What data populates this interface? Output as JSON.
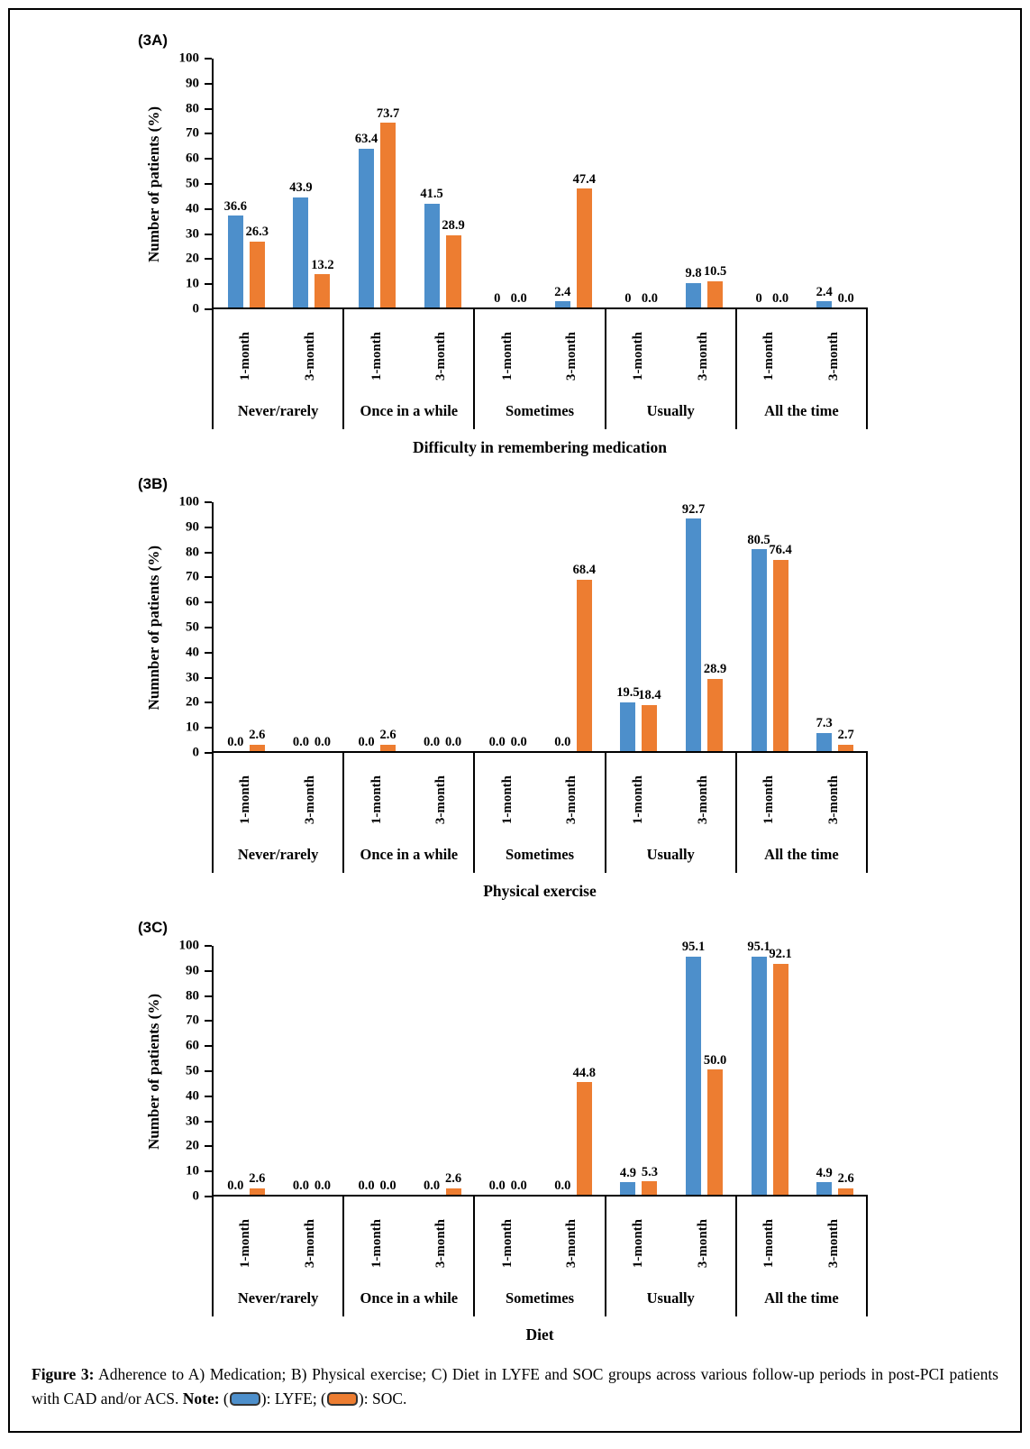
{
  "caption": {
    "label": "Figure 3:",
    "body": " Adherence to A) Medication; B) Physical exercise; C) Diet in LYFE and SOC groups across various follow-up periods in post-PCI patients with CAD and/or ACS. ",
    "note_label": "Note:",
    "note_open": " (",
    "lyfe_after": "): LYFE; (",
    "soc_after": "): SOC.",
    "lyfe_color": "#4D8FCB",
    "soc_color": "#ED7D31"
  },
  "chart_data": [
    {
      "id": "3A",
      "panel_label": "(3A)",
      "type": "bar",
      "title": "",
      "xlabel": "Difficulty in remembering medication",
      "ylabel": "Number of patients (%)",
      "ylim": [
        0,
        100
      ],
      "ytick_step": 10,
      "grid": false,
      "legend_position": "caption",
      "categories": [
        "Never/rarely",
        "Once in a while",
        "Sometimes",
        "Usually",
        "All the time"
      ],
      "periods": [
        "1-month",
        "3-month"
      ],
      "series": [
        {
          "name": "LYFE",
          "color": "#4D8FCB",
          "values": [
            [
              36.6,
              43.9
            ],
            [
              63.4,
              41.5
            ],
            [
              0,
              2.4
            ],
            [
              0,
              9.8
            ],
            [
              0,
              2.4
            ]
          ],
          "labels": [
            [
              "36.6",
              "43.9"
            ],
            [
              "63.4",
              "41.5"
            ],
            [
              "0",
              "2.4"
            ],
            [
              "0",
              "9.8"
            ],
            [
              "0",
              "2.4"
            ]
          ]
        },
        {
          "name": "SOC",
          "color": "#ED7D31",
          "values": [
            [
              26.3,
              13.2
            ],
            [
              73.7,
              28.9
            ],
            [
              0,
              47.4
            ],
            [
              0,
              10.5
            ],
            [
              0,
              0
            ]
          ],
          "labels": [
            [
              "26.3",
              "13.2"
            ],
            [
              "73.7",
              "28.9"
            ],
            [
              "0.0",
              "47.4"
            ],
            [
              "0.0",
              "10.5"
            ],
            [
              "0.0",
              "0.0"
            ]
          ]
        }
      ]
    },
    {
      "id": "3B",
      "panel_label": "(3B)",
      "type": "bar",
      "title": "",
      "xlabel": "Physical exercise",
      "ylabel": "Numnber of patients (%)",
      "ylim": [
        0,
        100
      ],
      "ytick_step": 10,
      "grid": false,
      "legend_position": "caption",
      "categories": [
        "Never/rarely",
        "Once in a while",
        "Sometimes",
        "Usually",
        "All the time"
      ],
      "periods": [
        "1-month",
        "3-month"
      ],
      "series": [
        {
          "name": "LYFE",
          "color": "#4D8FCB",
          "values": [
            [
              0,
              0
            ],
            [
              0,
              0
            ],
            [
              0,
              0
            ],
            [
              19.5,
              92.7
            ],
            [
              80.5,
              7.3
            ]
          ],
          "labels": [
            [
              "0.0",
              "0.0"
            ],
            [
              "0.0",
              "0.0"
            ],
            [
              "0.0",
              "0.0"
            ],
            [
              "19.5",
              "92.7"
            ],
            [
              "80.5",
              "7.3"
            ]
          ]
        },
        {
          "name": "SOC",
          "color": "#ED7D31",
          "values": [
            [
              2.6,
              0
            ],
            [
              2.6,
              0
            ],
            [
              0,
              68.4
            ],
            [
              18.4,
              28.9
            ],
            [
              76.4,
              2.7
            ]
          ],
          "labels": [
            [
              "2.6",
              "0.0"
            ],
            [
              "2.6",
              "0.0"
            ],
            [
              "0.0",
              "68.4"
            ],
            [
              "18.4",
              "28.9"
            ],
            [
              "76.4",
              "2.7"
            ]
          ]
        }
      ]
    },
    {
      "id": "3C",
      "panel_label": "(3C)",
      "type": "bar",
      "title": "",
      "xlabel": "Diet",
      "ylabel": "Number of patients (%)",
      "ylim": [
        0,
        100
      ],
      "ytick_step": 10,
      "grid": false,
      "legend_position": "caption",
      "categories": [
        "Never/rarely",
        "Once in a while",
        "Sometimes",
        "Usually",
        "All the time"
      ],
      "periods": [
        "1-month",
        "3-month"
      ],
      "series": [
        {
          "name": "LYFE",
          "color": "#4D8FCB",
          "values": [
            [
              0,
              0
            ],
            [
              0,
              0
            ],
            [
              0,
              0
            ],
            [
              4.9,
              95.1
            ],
            [
              95.1,
              4.9
            ]
          ],
          "labels": [
            [
              "0.0",
              "0.0"
            ],
            [
              "0.0",
              "0.0"
            ],
            [
              "0.0",
              "0.0"
            ],
            [
              "4.9",
              "95.1"
            ],
            [
              "95.1",
              "4.9"
            ]
          ]
        },
        {
          "name": "SOC",
          "color": "#ED7D31",
          "values": [
            [
              2.6,
              0
            ],
            [
              0,
              2.6
            ],
            [
              0,
              44.8
            ],
            [
              5.3,
              50.0
            ],
            [
              92.1,
              2.6
            ]
          ],
          "labels": [
            [
              "2.6",
              "0.0"
            ],
            [
              "0.0",
              "2.6"
            ],
            [
              "0.0",
              "44.8"
            ],
            [
              "5.3",
              "50.0"
            ],
            [
              "92.1",
              "2.6"
            ]
          ]
        }
      ]
    }
  ]
}
